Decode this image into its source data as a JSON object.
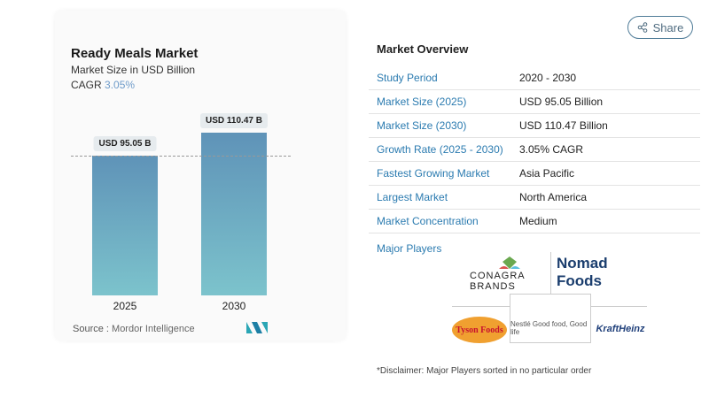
{
  "chart": {
    "title": "Ready Meals Market",
    "subtitle": "Market Size in USD Billion",
    "cagr_label": "CAGR",
    "cagr_value": "3.05%",
    "source_label": "Source :",
    "source_value": "Mordor Intelligence"
  },
  "chart_data": {
    "type": "bar",
    "categories": [
      "2025",
      "2030"
    ],
    "values": [
      95.05,
      110.47
    ],
    "data_labels": [
      "USD 95.05 B",
      "USD 110.47 B"
    ],
    "title": "Ready Meals Market",
    "ylabel": "Market Size in USD Billion",
    "grid": false,
    "reference_line": "dashed at 2025 value"
  },
  "share": {
    "label": "Share",
    "icon": "share-icon"
  },
  "overview": {
    "title": "Market Overview",
    "rows": [
      {
        "label": "Study Period",
        "value": "2020 - 2030"
      },
      {
        "label": "Market Size (2025)",
        "value": "USD 95.05 Billion"
      },
      {
        "label": "Market Size (2030)",
        "value": "USD 110.47 Billion"
      },
      {
        "label": "Growth Rate (2025 - 2030)",
        "value": "3.05% CAGR"
      },
      {
        "label": "Fastest Growing Market",
        "value": "Asia Pacific"
      },
      {
        "label": "Largest Market",
        "value": "North America"
      },
      {
        "label": "Market Concentration",
        "value": "Medium"
      }
    ]
  },
  "players": {
    "title": "Major Players",
    "logos": [
      "CONAGRA BRANDS",
      "Nomad Foods",
      "Tyson Foods",
      "Nestlé Good food, Good life",
      "KraftHeinz"
    ]
  },
  "disclaimer": "*Disclaimer: Major Players sorted in no particular order",
  "colors": {
    "bar_top": "#5f93b8",
    "bar_bottom": "#7cc3cc",
    "link": "#2b7bb0"
  }
}
